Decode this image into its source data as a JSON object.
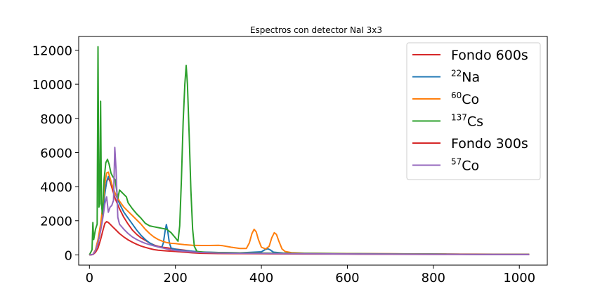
{
  "chart_data": {
    "type": "line",
    "title": "Espectros con detector NaI 3x3",
    "xlabel": "",
    "ylabel": "",
    "xlim": [
      -25,
      1065
    ],
    "ylim": [
      -600,
      12800
    ],
    "x_ticks": [
      0,
      200,
      400,
      600,
      800,
      1000
    ],
    "x_tick_labels": [
      "0",
      "200",
      "400",
      "600",
      "800",
      "1000"
    ],
    "y_ticks": [
      0,
      2000,
      4000,
      6000,
      8000,
      10000,
      12000
    ],
    "y_tick_labels": [
      "0",
      "2000",
      "4000",
      "6000",
      "8000",
      "10000",
      "12000"
    ],
    "grid": false,
    "legend_position": "top-right",
    "series": [
      {
        "name": "Fondo 600s",
        "label_sup": "",
        "label_text": "Fondo 600s",
        "color": "#d62728",
        "points": [
          [
            0,
            0
          ],
          [
            8,
            20
          ],
          [
            14,
            250
          ],
          [
            20,
            700
          ],
          [
            26,
            1500
          ],
          [
            32,
            2700
          ],
          [
            36,
            3700
          ],
          [
            40,
            4300
          ],
          [
            44,
            4500
          ],
          [
            48,
            4300
          ],
          [
            54,
            3800
          ],
          [
            60,
            3300
          ],
          [
            70,
            2700
          ],
          [
            80,
            2200
          ],
          [
            90,
            1800
          ],
          [
            100,
            1450
          ],
          [
            110,
            1200
          ],
          [
            120,
            1000
          ],
          [
            130,
            850
          ],
          [
            140,
            700
          ],
          [
            150,
            580
          ],
          [
            160,
            500
          ],
          [
            170,
            450
          ],
          [
            180,
            420
          ],
          [
            190,
            380
          ],
          [
            200,
            340
          ],
          [
            220,
            280
          ],
          [
            240,
            200
          ],
          [
            260,
            160
          ],
          [
            300,
            130
          ],
          [
            350,
            110
          ],
          [
            400,
            100
          ],
          [
            450,
            90
          ],
          [
            500,
            80
          ],
          [
            600,
            65
          ],
          [
            700,
            55
          ],
          [
            800,
            45
          ],
          [
            900,
            35
          ],
          [
            1023,
            25
          ]
        ]
      },
      {
        "name": "22Na",
        "label_sup": "22",
        "label_text": "Na",
        "color": "#1f77b4",
        "points": [
          [
            0,
            0
          ],
          [
            8,
            20
          ],
          [
            14,
            250
          ],
          [
            20,
            700
          ],
          [
            26,
            1500
          ],
          [
            32,
            2600
          ],
          [
            36,
            3600
          ],
          [
            40,
            4300
          ],
          [
            44,
            4600
          ],
          [
            48,
            4400
          ],
          [
            54,
            4000
          ],
          [
            60,
            3600
          ],
          [
            70,
            3000
          ],
          [
            80,
            2500
          ],
          [
            90,
            2150
          ],
          [
            100,
            1800
          ],
          [
            110,
            1450
          ],
          [
            120,
            1150
          ],
          [
            130,
            900
          ],
          [
            140,
            700
          ],
          [
            150,
            560
          ],
          [
            160,
            470
          ],
          [
            168,
            420
          ],
          [
            172,
            700
          ],
          [
            176,
            1400
          ],
          [
            179,
            1780
          ],
          [
            182,
            1400
          ],
          [
            186,
            700
          ],
          [
            190,
            400
          ],
          [
            200,
            330
          ],
          [
            220,
            250
          ],
          [
            260,
            170
          ],
          [
            300,
            140
          ],
          [
            350,
            120
          ],
          [
            400,
            180
          ],
          [
            408,
            300
          ],
          [
            415,
            360
          ],
          [
            420,
            300
          ],
          [
            428,
            160
          ],
          [
            450,
            110
          ],
          [
            500,
            90
          ],
          [
            600,
            75
          ],
          [
            700,
            60
          ],
          [
            800,
            45
          ],
          [
            900,
            35
          ],
          [
            1023,
            25
          ]
        ]
      },
      {
        "name": "60Co",
        "label_sup": "60",
        "label_text": "Co",
        "color": "#ff7f0e",
        "points": [
          [
            0,
            0
          ],
          [
            8,
            20
          ],
          [
            14,
            300
          ],
          [
            20,
            900
          ],
          [
            26,
            1800
          ],
          [
            32,
            3100
          ],
          [
            36,
            4200
          ],
          [
            40,
            4800
          ],
          [
            44,
            4850
          ],
          [
            48,
            4500
          ],
          [
            54,
            4000
          ],
          [
            60,
            3600
          ],
          [
            70,
            3150
          ],
          [
            80,
            2800
          ],
          [
            90,
            2550
          ],
          [
            100,
            2300
          ],
          [
            110,
            2050
          ],
          [
            120,
            1800
          ],
          [
            130,
            1500
          ],
          [
            140,
            1250
          ],
          [
            150,
            1050
          ],
          [
            160,
            900
          ],
          [
            170,
            800
          ],
          [
            180,
            720
          ],
          [
            190,
            680
          ],
          [
            200,
            660
          ],
          [
            220,
            600
          ],
          [
            240,
            560
          ],
          [
            260,
            550
          ],
          [
            280,
            550
          ],
          [
            300,
            560
          ],
          [
            310,
            540
          ],
          [
            330,
            450
          ],
          [
            350,
            380
          ],
          [
            365,
            380
          ],
          [
            372,
            700
          ],
          [
            378,
            1250
          ],
          [
            383,
            1500
          ],
          [
            388,
            1350
          ],
          [
            393,
            900
          ],
          [
            400,
            450
          ],
          [
            410,
            350
          ],
          [
            418,
            500
          ],
          [
            424,
            1000
          ],
          [
            430,
            1300
          ],
          [
            435,
            1200
          ],
          [
            440,
            850
          ],
          [
            448,
            350
          ],
          [
            455,
            200
          ],
          [
            470,
            130
          ],
          [
            500,
            100
          ],
          [
            600,
            80
          ],
          [
            700,
            65
          ],
          [
            800,
            50
          ],
          [
            900,
            40
          ],
          [
            1023,
            25
          ]
        ]
      },
      {
        "name": "137Cs",
        "label_sup": "137",
        "label_text": "Cs",
        "color": "#2ca02c",
        "points": [
          [
            0,
            0
          ],
          [
            6,
            300
          ],
          [
            8,
            1900
          ],
          [
            10,
            900
          ],
          [
            14,
            1500
          ],
          [
            18,
            1800
          ],
          [
            20,
            12200
          ],
          [
            22,
            2800
          ],
          [
            24,
            3000
          ],
          [
            26,
            9000
          ],
          [
            28,
            3000
          ],
          [
            30,
            2400
          ],
          [
            34,
            4400
          ],
          [
            38,
            5400
          ],
          [
            42,
            5600
          ],
          [
            46,
            5300
          ],
          [
            50,
            4800
          ],
          [
            54,
            4600
          ],
          [
            60,
            4400
          ],
          [
            66,
            3300
          ],
          [
            70,
            3800
          ],
          [
            74,
            3700
          ],
          [
            78,
            3600
          ],
          [
            82,
            3500
          ],
          [
            86,
            3400
          ],
          [
            90,
            3050
          ],
          [
            100,
            2700
          ],
          [
            110,
            2400
          ],
          [
            120,
            2150
          ],
          [
            130,
            1850
          ],
          [
            140,
            1700
          ],
          [
            150,
            1650
          ],
          [
            160,
            1600
          ],
          [
            170,
            1550
          ],
          [
            180,
            1500
          ],
          [
            190,
            1300
          ],
          [
            200,
            1000
          ],
          [
            206,
            800
          ],
          [
            210,
            1700
          ],
          [
            214,
            4500
          ],
          [
            218,
            7800
          ],
          [
            222,
            10000
          ],
          [
            225,
            11100
          ],
          [
            228,
            10000
          ],
          [
            232,
            7000
          ],
          [
            236,
            3800
          ],
          [
            240,
            1500
          ],
          [
            244,
            500
          ],
          [
            250,
            200
          ],
          [
            270,
            150
          ],
          [
            300,
            140
          ],
          [
            350,
            120
          ],
          [
            400,
            105
          ],
          [
            450,
            95
          ],
          [
            500,
            85
          ],
          [
            600,
            70
          ],
          [
            700,
            55
          ],
          [
            800,
            45
          ],
          [
            900,
            35
          ],
          [
            1023,
            25
          ]
        ]
      },
      {
        "name": "Fondo 300s",
        "label_sup": "",
        "label_text": "Fondo 300s",
        "color": "#d62728",
        "points": [
          [
            0,
            0
          ],
          [
            8,
            15
          ],
          [
            14,
            150
          ],
          [
            20,
            400
          ],
          [
            26,
            900
          ],
          [
            32,
            1500
          ],
          [
            36,
            1850
          ],
          [
            40,
            1950
          ],
          [
            44,
            1900
          ],
          [
            48,
            1800
          ],
          [
            54,
            1650
          ],
          [
            60,
            1500
          ],
          [
            70,
            1250
          ],
          [
            80,
            1050
          ],
          [
            90,
            880
          ],
          [
            100,
            740
          ],
          [
            110,
            620
          ],
          [
            120,
            520
          ],
          [
            130,
            440
          ],
          [
            140,
            370
          ],
          [
            150,
            310
          ],
          [
            160,
            270
          ],
          [
            180,
            230
          ],
          [
            200,
            200
          ],
          [
            220,
            160
          ],
          [
            240,
            120
          ],
          [
            260,
            95
          ],
          [
            300,
            80
          ],
          [
            400,
            65
          ],
          [
            500,
            55
          ],
          [
            600,
            45
          ],
          [
            700,
            38
          ],
          [
            800,
            30
          ],
          [
            900,
            25
          ],
          [
            1023,
            20
          ]
        ]
      },
      {
        "name": "57Co",
        "label_sup": "57",
        "label_text": "Co",
        "color": "#9467bd",
        "points": [
          [
            0,
            0
          ],
          [
            8,
            20
          ],
          [
            14,
            250
          ],
          [
            20,
            700
          ],
          [
            26,
            1400
          ],
          [
            32,
            2300
          ],
          [
            36,
            3000
          ],
          [
            40,
            3400
          ],
          [
            44,
            2500
          ],
          [
            48,
            2800
          ],
          [
            52,
            2900
          ],
          [
            56,
            3200
          ],
          [
            59,
            6300
          ],
          [
            62,
            5000
          ],
          [
            66,
            2200
          ],
          [
            70,
            1800
          ],
          [
            80,
            1500
          ],
          [
            90,
            1250
          ],
          [
            100,
            1050
          ],
          [
            110,
            900
          ],
          [
            120,
            780
          ],
          [
            130,
            680
          ],
          [
            140,
            600
          ],
          [
            150,
            530
          ],
          [
            160,
            470
          ],
          [
            170,
            410
          ],
          [
            180,
            350
          ],
          [
            190,
            300
          ],
          [
            200,
            260
          ],
          [
            220,
            210
          ],
          [
            240,
            170
          ],
          [
            260,
            140
          ],
          [
            300,
            110
          ],
          [
            350,
            95
          ],
          [
            400,
            85
          ],
          [
            450,
            75
          ],
          [
            500,
            65
          ],
          [
            600,
            55
          ],
          [
            700,
            45
          ],
          [
            800,
            38
          ],
          [
            900,
            30
          ],
          [
            1023,
            22
          ]
        ]
      }
    ]
  }
}
